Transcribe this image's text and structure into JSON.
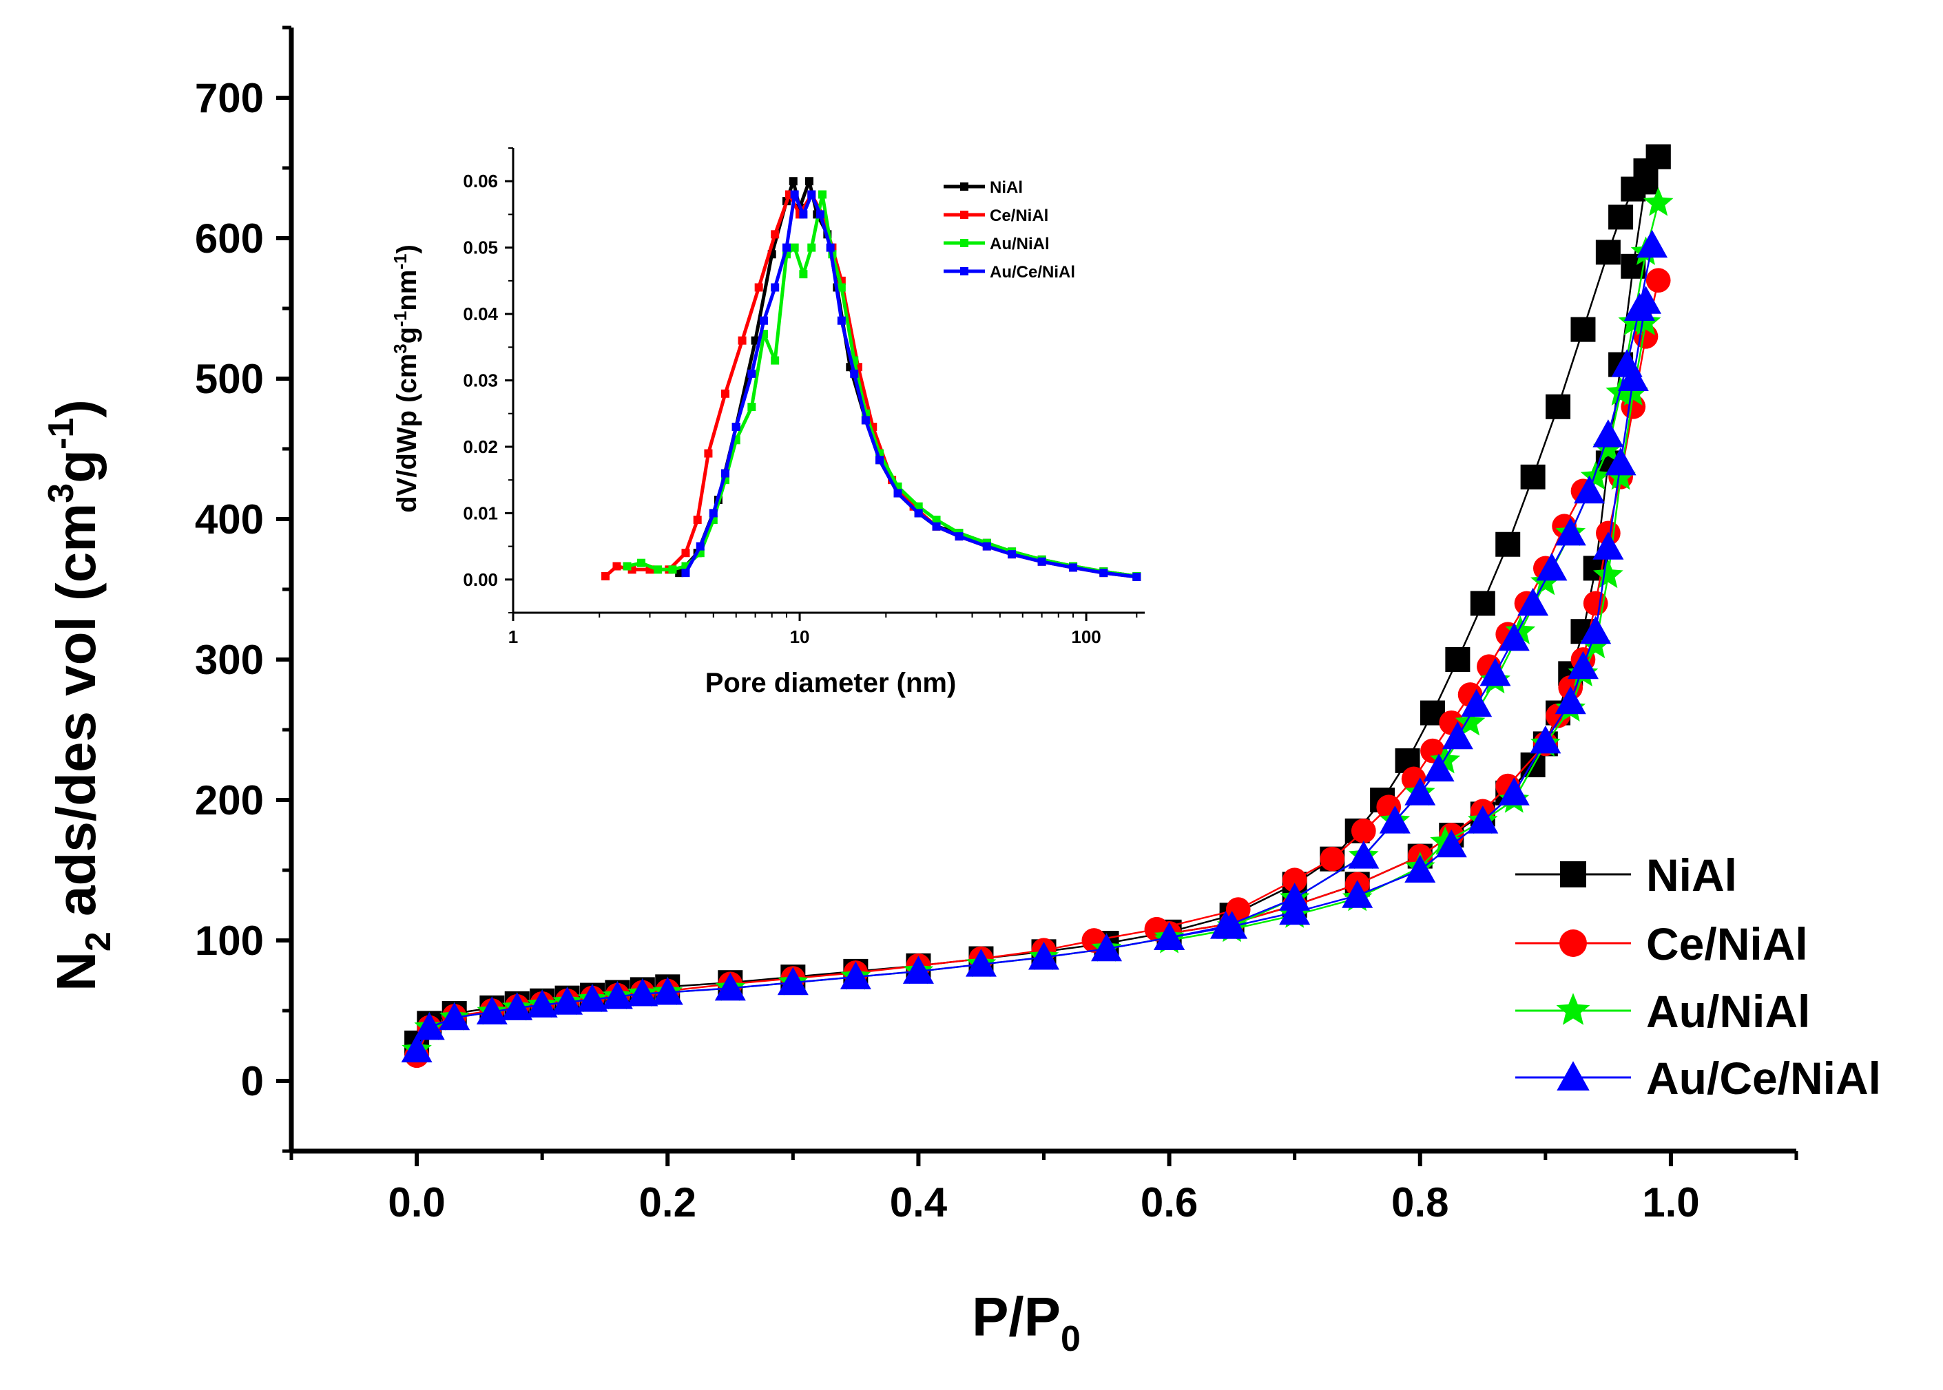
{
  "chart_data": [
    {
      "type": "scatter",
      "title": "",
      "xlabel": "P/P",
      "xlabel_sub": "0",
      "ylabel_parts": [
        "N",
        "2",
        " ads/des vol (cm",
        "3",
        "g",
        "-1",
        ")"
      ],
      "xlim": [
        -0.1,
        1.1
      ],
      "ylim": [
        -50,
        750
      ],
      "xticks": [
        0.0,
        0.2,
        0.4,
        0.6,
        0.8,
        1.0
      ],
      "xtick_labels": [
        "0.0",
        "0.2",
        "0.4",
        "0.6",
        "0.8",
        "1.0"
      ],
      "yticks": [
        0,
        100,
        200,
        300,
        400,
        500,
        600,
        700
      ],
      "ytick_labels": [
        "0",
        "100",
        "200",
        "300",
        "400",
        "500",
        "600",
        "700"
      ],
      "legend_position": "bottom-right",
      "series": [
        {
          "name": "NiAl",
          "color": "#000000",
          "marker": "square",
          "adsorption": {
            "x": [
              0.0,
              0.01,
              0.03,
              0.06,
              0.08,
              0.1,
              0.12,
              0.14,
              0.16,
              0.18,
              0.2,
              0.25,
              0.3,
              0.35,
              0.4,
              0.45,
              0.5,
              0.55,
              0.6,
              0.65,
              0.7,
              0.73,
              0.75,
              0.77,
              0.79,
              0.81,
              0.83,
              0.85,
              0.87,
              0.89,
              0.91,
              0.93,
              0.95,
              0.96,
              0.97,
              0.98,
              0.99
            ],
            "y": [
              27,
              41,
              48,
              52,
              55,
              57,
              59,
              61,
              63,
              65,
              67,
              70,
              74,
              78,
              82,
              87,
              92,
              98,
              106,
              118,
              140,
              158,
              178,
              200,
              228,
              262,
              300,
              340,
              382,
              430,
              480,
              535,
              590,
              615,
              635,
              648,
              658
            ]
          },
          "desorption": {
            "x": [
              0.99,
              0.98,
              0.97,
              0.96,
              0.95,
              0.94,
              0.93,
              0.92,
              0.91,
              0.9,
              0.89,
              0.87,
              0.85,
              0.825,
              0.8,
              0.75,
              0.7,
              0.65,
              0.6
            ],
            "y": [
              658,
              640,
              580,
              510,
              440,
              365,
              320,
              290,
              262,
              240,
              225,
              205,
              190,
              175,
              160,
              140,
              125,
              112,
              105
            ]
          }
        },
        {
          "name": "Ce/NiAl",
          "color": "#ff0000",
          "marker": "circle",
          "adsorption": {
            "x": [
              0.0,
              0.01,
              0.03,
              0.06,
              0.08,
              0.1,
              0.12,
              0.14,
              0.16,
              0.18,
              0.2,
              0.25,
              0.3,
              0.35,
              0.4,
              0.45,
              0.5,
              0.54,
              0.59,
              0.655,
              0.7,
              0.73,
              0.755,
              0.775,
              0.795,
              0.81,
              0.825,
              0.84,
              0.855,
              0.87,
              0.885,
              0.9,
              0.915,
              0.93
            ],
            "y": [
              18,
              38,
              46,
              50,
              53,
              55,
              57,
              59,
              61,
              63,
              64,
              69,
              73,
              77,
              82,
              87,
              93,
              100,
              108,
              122,
              143,
              158,
              178,
              195,
              215,
              235,
              255,
              275,
              295,
              318,
              340,
              365,
              395,
              420
            ]
          },
          "desorption": {
            "x": [
              0.99,
              0.98,
              0.97,
              0.96,
              0.95,
              0.94,
              0.93,
              0.92,
              0.91,
              0.9,
              0.87,
              0.85,
              0.825,
              0.8,
              0.75,
              0.7,
              0.65,
              0.6
            ],
            "y": [
              570,
              530,
              480,
              430,
              390,
              340,
              300,
              280,
              260,
              240,
              210,
              192,
              175,
              160,
              140,
              125,
              112,
              105
            ]
          }
        },
        {
          "name": "Au/NiAl",
          "color": "#00ee00",
          "marker": "star",
          "adsorption": {
            "x": [
              0.0,
              0.01,
              0.03,
              0.06,
              0.08,
              0.1,
              0.12,
              0.14,
              0.16,
              0.18,
              0.2,
              0.25,
              0.3,
              0.35,
              0.4,
              0.45,
              0.5,
              0.55,
              0.6,
              0.65,
              0.7,
              0.755,
              0.78,
              0.8,
              0.82,
              0.84,
              0.86,
              0.88,
              0.9,
              0.92,
              0.94,
              0.95,
              0.96,
              0.97,
              0.98,
              0.99
            ],
            "y": [
              22,
              38,
              45,
              49,
              52,
              54,
              56,
              58,
              60,
              62,
              63,
              66,
              70,
              74,
              78,
              83,
              88,
              94,
              102,
              110,
              130,
              160,
              185,
              205,
              228,
              255,
              285,
              320,
              355,
              390,
              430,
              450,
              490,
              540,
              590,
              625
            ]
          },
          "desorption": {
            "x": [
              0.98,
              0.97,
              0.96,
              0.95,
              0.94,
              0.93,
              0.92,
              0.9,
              0.875,
              0.85,
              0.82,
              0.8,
              0.75,
              0.7,
              0.65,
              0.6
            ],
            "y": [
              540,
              490,
              430,
              360,
              310,
              290,
              265,
              240,
              200,
              185,
              170,
              152,
              130,
              118,
              108,
              100
            ]
          }
        },
        {
          "name": "Au/Ce/NiAl",
          "color": "#0000ff",
          "marker": "triangle",
          "adsorption": {
            "x": [
              0.0,
              0.01,
              0.03,
              0.06,
              0.08,
              0.1,
              0.12,
              0.14,
              0.16,
              0.18,
              0.2,
              0.25,
              0.3,
              0.35,
              0.4,
              0.45,
              0.5,
              0.55,
              0.6,
              0.645,
              0.7,
              0.755,
              0.78,
              0.8,
              0.815,
              0.83,
              0.845,
              0.86,
              0.875,
              0.89,
              0.905,
              0.92,
              0.935,
              0.95,
              0.965,
              0.975,
              0.985
            ],
            "y": [
              22,
              38,
              45,
              49,
              52,
              54,
              56,
              58,
              60,
              62,
              63,
              66,
              70,
              74,
              78,
              83,
              88,
              94,
              102,
              110,
              130,
              160,
              185,
              205,
              222,
              245,
              268,
              290,
              315,
              340,
              365,
              390,
              420,
              460,
              510,
              550,
              595
            ]
          },
          "desorption": {
            "x": [
              0.98,
              0.97,
              0.96,
              0.95,
              0.94,
              0.93,
              0.92,
              0.9,
              0.875,
              0.85,
              0.825,
              0.8,
              0.75,
              0.7,
              0.65,
              0.6
            ],
            "y": [
              555,
              500,
              440,
              380,
              320,
              295,
              270,
              242,
              205,
              185,
              168,
              150,
              132,
              120,
              110,
              102
            ]
          }
        }
      ]
    },
    {
      "type": "line",
      "title": "",
      "xlabel": "Pore diameter (nm)",
      "ylabel_parts": [
        "dV/dWp (cm",
        "3",
        "g",
        "-1",
        "nm",
        "-1",
        ")"
      ],
      "xscale": "log",
      "xlim": [
        1,
        160
      ],
      "ylim": [
        -0.005,
        0.065
      ],
      "xticks": [
        1,
        10,
        100
      ],
      "xtick_labels": [
        "1",
        "10",
        "100"
      ],
      "yticks": [
        0.0,
        0.01,
        0.02,
        0.03,
        0.04,
        0.05,
        0.06
      ],
      "ytick_labels": [
        "0.00",
        "0.01",
        "0.02",
        "0.03",
        "0.04",
        "0.05",
        "0.06"
      ],
      "legend_position": "top-right",
      "series": [
        {
          "name": "NiAl",
          "color": "#000000",
          "x": [
            3.8,
            4.4,
            5.2,
            6.0,
            7.0,
            8.0,
            9.0,
            9.5,
            10.0,
            10.8,
            11.5,
            12.5,
            13.5,
            15.0,
            17.0,
            19.0,
            22.0,
            26.0,
            30.0,
            36.0,
            45.0,
            55.0,
            70.0,
            90.0,
            115.0,
            150.0
          ],
          "y": [
            0.001,
            0.004,
            0.012,
            0.023,
            0.036,
            0.049,
            0.057,
            0.06,
            0.056,
            0.06,
            0.055,
            0.052,
            0.044,
            0.032,
            0.024,
            0.018,
            0.013,
            0.01,
            0.008,
            0.007,
            0.0055,
            0.0042,
            0.003,
            0.002,
            0.0012,
            0.0005
          ]
        },
        {
          "name": "Ce/NiAl",
          "color": "#ff0000",
          "x": [
            2.1,
            2.3,
            2.6,
            3.0,
            3.5,
            4.0,
            4.4,
            4.8,
            5.5,
            6.3,
            7.2,
            8.2,
            9.2,
            10.0,
            11.0,
            12.0,
            13.0,
            14.0,
            16.0,
            18.0,
            21.0,
            25.0,
            30.0,
            36.0,
            45.0,
            55.0,
            70.0,
            90.0,
            115.0,
            150.0
          ],
          "y": [
            0.0005,
            0.002,
            0.0015,
            0.0015,
            0.0015,
            0.004,
            0.009,
            0.019,
            0.028,
            0.036,
            0.044,
            0.052,
            0.058,
            0.055,
            0.058,
            0.055,
            0.05,
            0.045,
            0.032,
            0.023,
            0.015,
            0.011,
            0.008,
            0.0065,
            0.005,
            0.0038,
            0.0027,
            0.0018,
            0.001,
            0.0004
          ]
        },
        {
          "name": "Au/NiAl",
          "color": "#00ee00",
          "x": [
            2.5,
            2.8,
            3.2,
            3.6,
            4.0,
            4.5,
            5.0,
            5.5,
            6.0,
            6.8,
            7.5,
            8.2,
            9.0,
            9.6,
            10.3,
            11.0,
            12.0,
            13.0,
            14.0,
            15.5,
            17.0,
            19.0,
            22.0,
            26.0,
            30.0,
            36.0,
            45.0,
            55.0,
            70.0,
            90.0,
            115.0,
            150.0
          ],
          "y": [
            0.002,
            0.0025,
            0.0015,
            0.0015,
            0.002,
            0.004,
            0.009,
            0.015,
            0.021,
            0.026,
            0.037,
            0.033,
            0.049,
            0.05,
            0.046,
            0.05,
            0.058,
            0.049,
            0.044,
            0.033,
            0.025,
            0.019,
            0.014,
            0.011,
            0.009,
            0.007,
            0.0055,
            0.0042,
            0.003,
            0.002,
            0.0012,
            0.0005
          ]
        },
        {
          "name": "Au/Ce/NiAl",
          "color": "#0000ff",
          "x": [
            4.0,
            4.5,
            5.0,
            5.5,
            6.0,
            6.8,
            7.5,
            8.2,
            9.0,
            9.6,
            10.3,
            11.0,
            11.8,
            12.8,
            14.0,
            15.5,
            17.0,
            19.0,
            22.0,
            26.0,
            30.0,
            36.0,
            45.0,
            55.0,
            70.0,
            90.0,
            115.0,
            150.0
          ],
          "y": [
            0.001,
            0.005,
            0.01,
            0.016,
            0.023,
            0.031,
            0.039,
            0.044,
            0.05,
            0.058,
            0.055,
            0.058,
            0.055,
            0.05,
            0.039,
            0.031,
            0.024,
            0.018,
            0.013,
            0.01,
            0.008,
            0.0065,
            0.005,
            0.0038,
            0.0027,
            0.0018,
            0.001,
            0.0004
          ]
        }
      ]
    }
  ]
}
